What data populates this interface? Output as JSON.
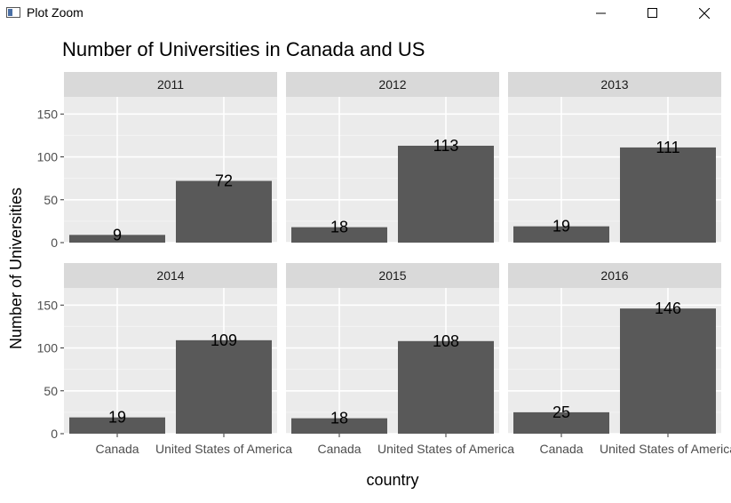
{
  "window": {
    "title": "Plot Zoom",
    "icons": [
      "plot-window-icon",
      "minimize-icon",
      "maximize-icon",
      "close-icon"
    ]
  },
  "chart_data": {
    "type": "bar",
    "title": "Number of Universities in Canada and US",
    "xlabel": "country",
    "ylabel": "Number of Universities",
    "categories": [
      "Canada",
      "United States of America"
    ],
    "ylim": [
      0,
      170
    ],
    "yticks": [
      0,
      50,
      100,
      150
    ],
    "grid": true,
    "facet_by": "year",
    "facets": [
      {
        "label": "2011",
        "values": [
          9,
          72
        ]
      },
      {
        "label": "2012",
        "values": [
          18,
          113
        ]
      },
      {
        "label": "2013",
        "values": [
          19,
          111
        ]
      },
      {
        "label": "2014",
        "values": [
          19,
          109
        ]
      },
      {
        "label": "2015",
        "values": [
          18,
          108
        ]
      },
      {
        "label": "2016",
        "values": [
          25,
          146
        ]
      }
    ],
    "colors": {
      "bar": "#595959",
      "panel": "#ebebeb",
      "strip": "#d9d9d9",
      "grid_major": "#ffffff",
      "grid_minor": "#f4f4f4",
      "tick_text": "#4d4d4d"
    }
  }
}
